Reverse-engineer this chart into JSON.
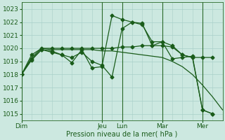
{
  "background_color": "#cce8e0",
  "grid_color": "#a8cfc8",
  "line_color": "#1a5c1a",
  "marker_color": "#1a5c1a",
  "xlabel": "Pression niveau de la mer( hPa )",
  "ylim": [
    1014.5,
    1023.5
  ],
  "yticks": [
    1015,
    1016,
    1017,
    1018,
    1019,
    1020,
    1021,
    1022,
    1023
  ],
  "day_labels": [
    "Dim",
    "Jeu",
    "Lun",
    "Mar",
    "Mer"
  ],
  "day_positions": [
    0,
    48,
    60,
    84,
    108
  ],
  "xlim": [
    0,
    120
  ],
  "series1_x": [
    0,
    6,
    12,
    18,
    24,
    30,
    36,
    42,
    48,
    54,
    60,
    66,
    72,
    78,
    84,
    90,
    96,
    102,
    108,
    114,
    120
  ],
  "series1_y": [
    1018.0,
    1019.3,
    1020.0,
    1019.9,
    1019.9,
    1019.9,
    1019.9,
    1019.9,
    1019.8,
    1019.8,
    1019.7,
    1019.6,
    1019.5,
    1019.4,
    1019.3,
    1019.0,
    1018.6,
    1018.0,
    1017.2,
    1016.3,
    1015.3
  ],
  "series2_x": [
    0,
    6,
    12,
    18,
    24,
    30,
    36,
    42,
    48,
    54,
    60,
    66,
    72,
    78,
    84,
    90,
    96,
    102,
    108,
    114
  ],
  "series2_y": [
    1018.0,
    1019.5,
    1020.0,
    1020.0,
    1020.0,
    1020.0,
    1020.0,
    1020.0,
    1020.0,
    1020.0,
    1020.1,
    1020.1,
    1020.2,
    1020.2,
    1020.2,
    1020.1,
    1019.5,
    1019.3,
    1019.3,
    1019.3
  ],
  "series3_x": [
    0,
    6,
    12,
    18,
    24,
    30,
    36,
    42,
    48,
    54,
    60,
    66,
    72,
    78,
    84,
    90,
    96,
    102,
    108,
    114
  ],
  "series3_y": [
    1018.0,
    1019.2,
    1019.9,
    1019.8,
    1019.5,
    1019.3,
    1019.7,
    1019.0,
    1018.7,
    1017.8,
    1021.5,
    1022.0,
    1021.8,
    1020.5,
    1020.5,
    1020.2,
    1019.5,
    1019.3,
    1015.3,
    1015.0
  ],
  "series4_x": [
    0,
    6,
    12,
    18,
    24,
    30,
    36,
    42,
    48,
    54,
    60,
    66,
    72,
    78,
    84,
    90,
    96,
    102,
    108,
    114
  ],
  "series4_y": [
    1018.0,
    1019.1,
    1019.9,
    1019.7,
    1019.5,
    1018.9,
    1019.9,
    1018.5,
    1018.6,
    1022.5,
    1022.2,
    1022.0,
    1021.9,
    1020.2,
    1020.5,
    1019.2,
    1019.3,
    1019.4,
    1015.3,
    1015.0
  ]
}
